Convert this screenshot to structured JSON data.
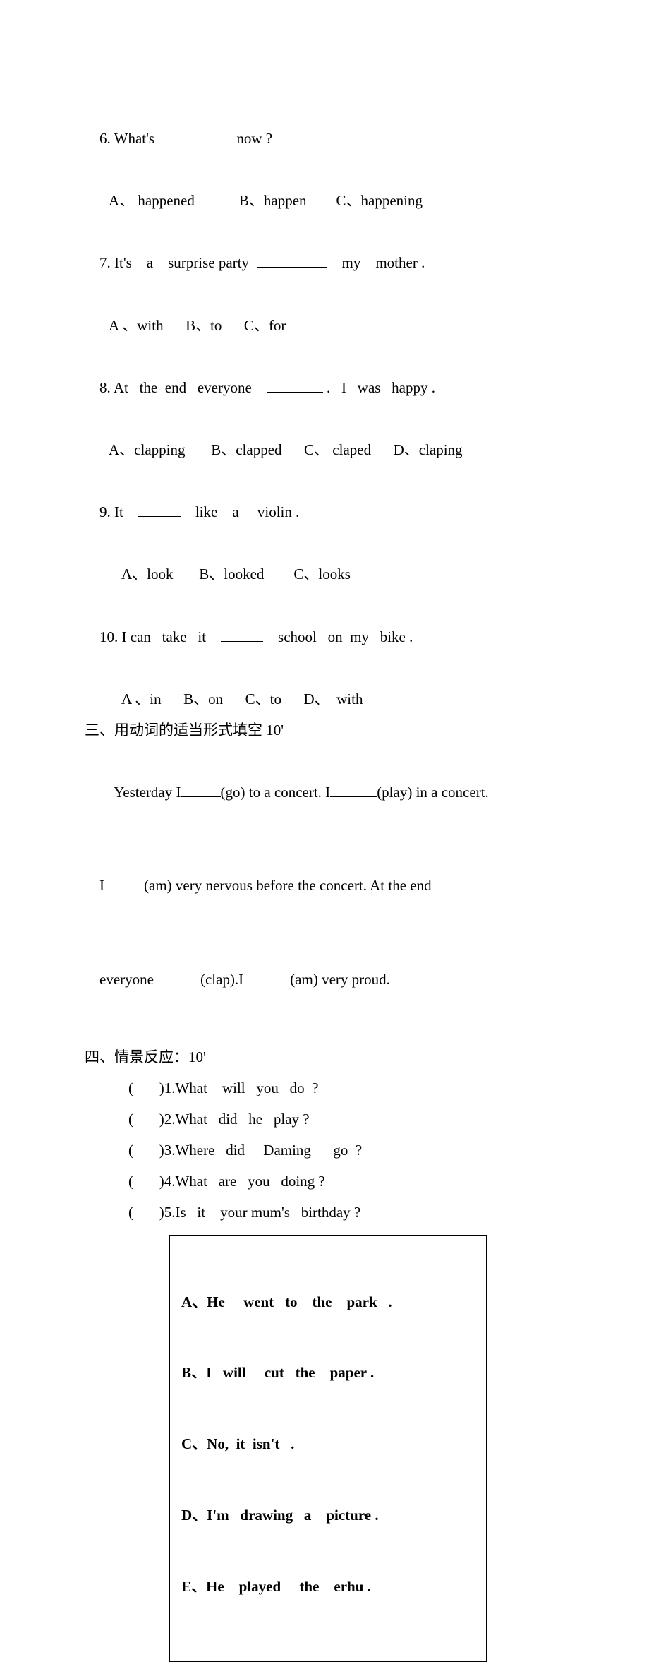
{
  "q6": {
    "stem_a": "6. What's ",
    "stem_b": "    now ?",
    "opts": "A、 happened            B、happen        C、happening"
  },
  "q7": {
    "stem_a": "7. It's    a    surprise party  ",
    "stem_b": "    my    mother .",
    "opts": "A 、with      B、to      C、for"
  },
  "q8": {
    "stem_a": "8. At   the  end   everyone    ",
    "stem_b": " .   I   was   happy .",
    "opts": "A、clapping       B、clapped      C、 claped      D、claping"
  },
  "q9": {
    "stem_a": "9. It    ",
    "stem_b": "    like    a     violin .",
    "opts": "A、look       B、looked        C、looks"
  },
  "q10": {
    "stem_a": "10. I can   take   it    ",
    "stem_b": "    school   on  my   bike .",
    "opts": "A 、in      B、on      C、to      D、  with"
  },
  "section3": {
    "title": "三、用动词的适当形式填空 10'",
    "p1a": "    Yesterday I",
    "p1b": "(go) to a concert. I",
    "p1c": "(play) in a concert.",
    "p2a": "I",
    "p2b": "(am) very nervous before the concert. At the end",
    "p3a": "everyone",
    "p3b": "(clap).I",
    "p3c": "(am) very proud."
  },
  "section4": {
    "title": "四、情景反应：10'",
    "items": [
      "(       )1.What    will   you   do  ?",
      "(       )2.What   did   he   play ?",
      "(       )3.Where   did     Daming      go  ?",
      "(       )4.What   are   you   doing ?",
      "(       )5.Is   it    your mum's   birthday ?"
    ],
    "box": [
      "A、He     went   to    the    park   .",
      "B、I   will     cut   the    paper .",
      "C、No,  it  isn't   .",
      "D、I'm   drawing   a    picture .",
      "E、He    played     the    erhu ."
    ]
  }
}
